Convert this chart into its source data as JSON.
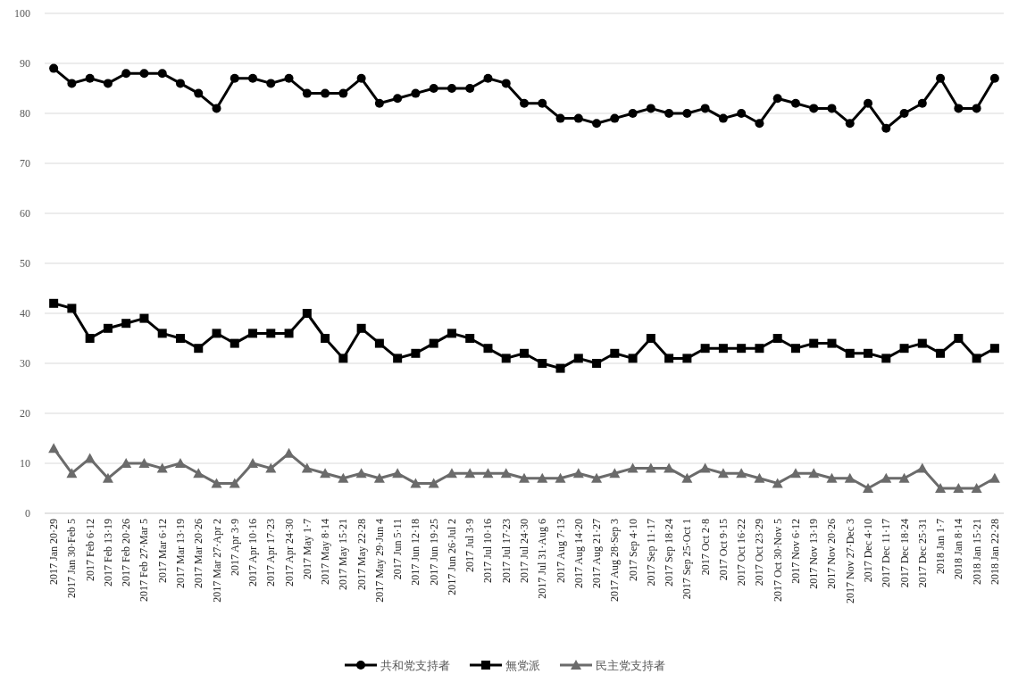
{
  "chart_data": {
    "type": "line",
    "categories": [
      "2017 Jan 20·29",
      "2017 Jan 30·Feb 5",
      "2017 Feb 6·12",
      "2017 Feb 13·19",
      "2017 Feb 20·26",
      "2017 Feb 27·Mar 5",
      "2017 Mar 6·12",
      "2017 Mar 13·19",
      "2017 Mar 20·26",
      "2017 Mar 27·Apr 2",
      "2017 Apr 3·9",
      "2017 Apr 10·16",
      "2017 Apr 17·23",
      "2017 Apr 24·30",
      "2017 May 1·7",
      "2017 May 8·14",
      "2017 May 15·21",
      "2017 May 22·28",
      "2017 May 29·Jun 4",
      "2017 Jun 5·11",
      "2017 Jun 12·18",
      "2017 Jun 19·25",
      "2017 Jun 26·Jul 2",
      "2017 Jul 3·9",
      "2017 Jul 10·16",
      "2017 Jul 17·23",
      "2017 Jul 24·30",
      "2017 Jul 31·Aug 6",
      "2017 Aug 7·13",
      "2017 Aug 14·20",
      "2017 Aug 21·27",
      "2017 Aug 28·Sep 3",
      "2017 Sep 4·10",
      "2017 Sep 11·17",
      "2017 Sep 18·24",
      "2017 Sep 25·Oct 1",
      "2017 Oct 2·8",
      "2017 Oct 9·15",
      "2017 Oct 16·22",
      "2017 Oct 23·29",
      "2017 Oct 30·Nov 5",
      "2017 Nov 6·12",
      "2017 Nov 13·19",
      "2017 Nov 20·26",
      "2017 Nov 27·Dec 3",
      "2017 Dec 4·10",
      "2017 Dec 11·17",
      "2017 Dec 18·24",
      "2017 Dec 25·31",
      "2018 Jan 1·7",
      "2018 Jan 8·14",
      "2018 Jan 15·21",
      "2018 Jan 22·28"
    ],
    "series": [
      {
        "name": "共和党支持者",
        "color": "#000000",
        "marker": "circle",
        "values": [
          89,
          86,
          87,
          86,
          88,
          88,
          88,
          86,
          84,
          81,
          87,
          87,
          86,
          87,
          84,
          84,
          84,
          87,
          82,
          83,
          84,
          85,
          85,
          85,
          87,
          86,
          82,
          82,
          79,
          79,
          78,
          79,
          80,
          81,
          80,
          80,
          81,
          79,
          80,
          78,
          83,
          82,
          81,
          81,
          78,
          82,
          77,
          80,
          82,
          87,
          81,
          81,
          87
        ]
      },
      {
        "name": "無党派",
        "color": "#000000",
        "marker": "square",
        "values": [
          42,
          41,
          35,
          37,
          38,
          39,
          36,
          35,
          33,
          36,
          34,
          36,
          36,
          36,
          40,
          35,
          31,
          37,
          34,
          31,
          32,
          34,
          36,
          35,
          33,
          31,
          32,
          30,
          29,
          31,
          30,
          32,
          31,
          35,
          31,
          31,
          33,
          33,
          33,
          33,
          35,
          33,
          34,
          34,
          32,
          32,
          31,
          33,
          34,
          32,
          35,
          31,
          33
        ]
      },
      {
        "name": "民主党支持者",
        "color": "#6b6b6b",
        "marker": "triangle",
        "values": [
          13,
          8,
          11,
          7,
          10,
          10,
          9,
          10,
          8,
          6,
          6,
          10,
          9,
          12,
          9,
          8,
          7,
          8,
          7,
          8,
          6,
          6,
          8,
          8,
          8,
          8,
          7,
          7,
          7,
          8,
          7,
          8,
          9,
          9,
          9,
          7,
          9,
          8,
          8,
          7,
          6,
          8,
          8,
          7,
          7,
          5,
          7,
          7,
          9,
          5,
          5,
          5,
          7
        ]
      }
    ],
    "ylim": [
      0,
      100
    ],
    "yticks": [
      0,
      10,
      20,
      30,
      40,
      50,
      60,
      70,
      80,
      90,
      100
    ],
    "grid": "y",
    "legend": "bottom"
  }
}
